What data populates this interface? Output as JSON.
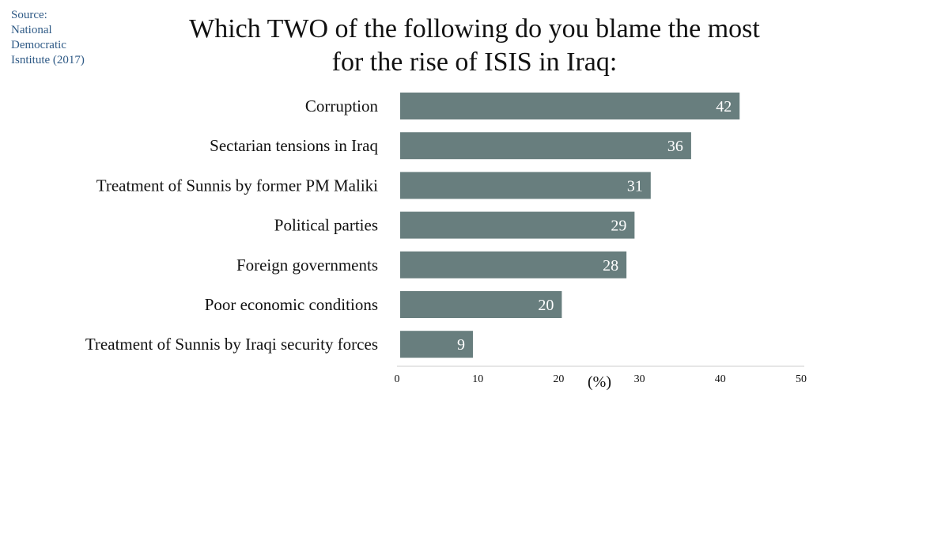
{
  "source": {
    "lines": [
      "Source:",
      "National",
      "Democratic",
      "Isntitute (2017)"
    ]
  },
  "chart_data": {
    "type": "bar",
    "orientation": "horizontal",
    "title_lines": [
      "Which TWO of the following do you blame the most",
      "for the rise of ISIS in Iraq:"
    ],
    "categories": [
      "Corruption",
      "Sectarian tensions in Iraq",
      "Treatment of Sunnis by former PM Maliki",
      "Political parties",
      "Foreign governments",
      "Poor economic conditions",
      "Treatment of Sunnis by Iraqi security forces"
    ],
    "values": [
      42,
      36,
      31,
      29,
      28,
      20,
      9
    ],
    "xlabel": "(%)",
    "xlim": [
      0,
      50
    ],
    "xticks": [
      0,
      10,
      20,
      30,
      40,
      50
    ],
    "grid": false,
    "legend": "none",
    "bar_color": "#687e7e",
    "value_label_color": "#ffffff"
  }
}
